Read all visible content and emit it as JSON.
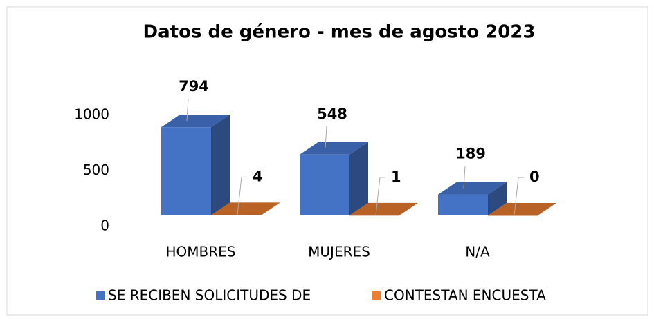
{
  "chart_data": {
    "type": "bar3d",
    "title": "Datos de género - mes de agosto 2023",
    "categories": [
      "HOMBRES",
      "MUJERES",
      "N/A"
    ],
    "series": [
      {
        "name": "SE RECIBEN SOLICITUDES DE",
        "color": "#4472c4",
        "values": [
          794,
          548,
          189
        ]
      },
      {
        "name": "CONTESTAN ENCUESTA",
        "color": "#ed7d31",
        "values": [
          4,
          1,
          0
        ]
      }
    ],
    "ylim": [
      0,
      1000
    ],
    "yticks": [
      0,
      500,
      1000
    ],
    "legend": "bottom"
  }
}
